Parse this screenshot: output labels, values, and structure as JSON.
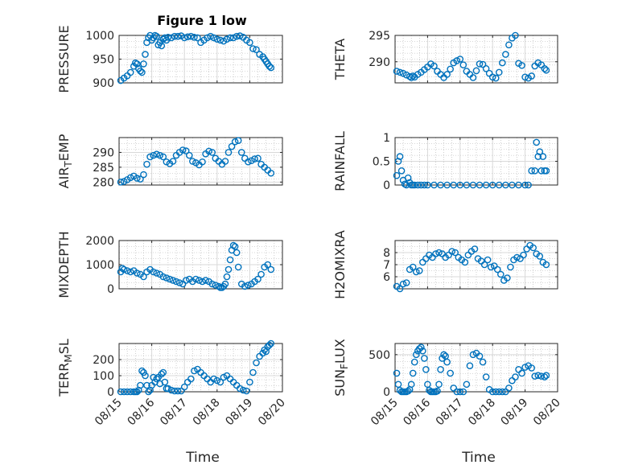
{
  "figure_title": "Figure 1 low",
  "xlabel": "Time",
  "x_tick_labels": [
    "08/15",
    "08/16",
    "08/17",
    "08/18",
    "08/19",
    "08/20"
  ],
  "colors": {
    "marker": "#0072bd",
    "axis": "#262626",
    "grid": "#d9d9d9",
    "minor_grid": "#b0b0b0"
  },
  "chart_data": [
    {
      "type": "scatter",
      "ylabel": "PRESSURE",
      "xlim": [
        0,
        5
      ],
      "ylim": [
        900,
        1000
      ],
      "yticks": [
        900,
        950,
        1000
      ],
      "x": [
        0.05,
        0.15,
        0.25,
        0.35,
        0.45,
        0.5,
        0.55,
        0.6,
        0.65,
        0.7,
        0.75,
        0.8,
        0.85,
        0.9,
        0.95,
        1.0,
        1.05,
        1.1,
        1.15,
        1.2,
        1.25,
        1.3,
        1.35,
        1.4,
        1.45,
        1.5,
        1.6,
        1.7,
        1.8,
        1.9,
        2.0,
        2.1,
        2.2,
        2.3,
        2.4,
        2.5,
        2.6,
        2.7,
        2.8,
        2.9,
        3.0,
        3.1,
        3.2,
        3.3,
        3.4,
        3.5,
        3.6,
        3.7,
        3.8,
        3.9,
        4.0,
        4.1,
        4.2,
        4.3,
        4.4,
        4.45,
        4.5,
        4.55,
        4.6,
        4.65
      ],
      "y": [
        905,
        910,
        915,
        922,
        935,
        942,
        940,
        930,
        925,
        922,
        940,
        960,
        985,
        995,
        1000,
        990,
        995,
        1000,
        998,
        980,
        985,
        978,
        992,
        995,
        990,
        996,
        995,
        998,
        998,
        999,
        995,
        997,
        998,
        996,
        995,
        985,
        990,
        995,
        998,
        995,
        992,
        990,
        988,
        992,
        995,
        995,
        998,
        999,
        996,
        990,
        985,
        972,
        970,
        960,
        955,
        950,
        945,
        940,
        935,
        932
      ]
    },
    {
      "type": "scatter",
      "ylabel": "THETA",
      "xlim": [
        0,
        5
      ],
      "ylim": [
        286,
        295
      ],
      "yticks": [
        290,
        295
      ],
      "x": [
        0.05,
        0.15,
        0.25,
        0.35,
        0.45,
        0.5,
        0.55,
        0.6,
        0.7,
        0.8,
        0.9,
        1.0,
        1.1,
        1.2,
        1.3,
        1.4,
        1.5,
        1.6,
        1.7,
        1.8,
        1.9,
        2.0,
        2.1,
        2.2,
        2.3,
        2.4,
        2.5,
        2.6,
        2.7,
        2.8,
        2.9,
        3.0,
        3.1,
        3.2,
        3.3,
        3.4,
        3.5,
        3.6,
        3.7,
        3.8,
        3.9,
        4.0,
        4.1,
        4.2,
        4.3,
        4.4,
        4.5,
        4.6,
        4.65
      ],
      "y": [
        288.2,
        288.0,
        287.8,
        287.5,
        287.2,
        287.0,
        287.3,
        287.1,
        287.6,
        288.0,
        288.5,
        289.0,
        289.6,
        289.2,
        288.2,
        287.6,
        287.0,
        287.6,
        288.6,
        289.8,
        290.2,
        290.5,
        289.4,
        288.2,
        287.6,
        287.0,
        288.3,
        289.6,
        289.5,
        288.7,
        287.8,
        287.1,
        286.9,
        288.0,
        289.8,
        291.4,
        293.2,
        294.5,
        295.0,
        289.7,
        289.3,
        287.1,
        286.9,
        287.3,
        289.2,
        289.8,
        289.4,
        288.7,
        288.4
      ]
    },
    {
      "type": "scatter",
      "ylabel": "AIR_TEMP",
      "xlim": [
        0,
        5
      ],
      "ylim": [
        279,
        295
      ],
      "yticks": [
        280,
        285,
        290
      ],
      "x": [
        0.05,
        0.15,
        0.25,
        0.35,
        0.45,
        0.55,
        0.65,
        0.75,
        0.85,
        0.95,
        1.05,
        1.15,
        1.25,
        1.35,
        1.45,
        1.55,
        1.65,
        1.75,
        1.85,
        1.95,
        2.05,
        2.15,
        2.25,
        2.35,
        2.45,
        2.55,
        2.65,
        2.75,
        2.85,
        2.95,
        3.05,
        3.15,
        3.25,
        3.35,
        3.45,
        3.55,
        3.65,
        3.75,
        3.85,
        3.95,
        4.05,
        4.15,
        4.25,
        4.35,
        4.45,
        4.55,
        4.65
      ],
      "y": [
        280.0,
        280.2,
        280.8,
        281.5,
        282.0,
        281.3,
        281.0,
        282.5,
        286.0,
        288.5,
        289.0,
        289.4,
        289.0,
        288.5,
        286.8,
        286.2,
        287.0,
        289.0,
        290.0,
        290.8,
        290.5,
        289.0,
        287.0,
        286.5,
        285.8,
        286.8,
        289.5,
        290.4,
        290.0,
        288.0,
        287.0,
        286.0,
        287.0,
        290.0,
        292.0,
        293.6,
        294.0,
        290.0,
        288.0,
        286.8,
        287.2,
        287.8,
        288.0,
        286.0,
        285.0,
        284.0,
        283.0
      ]
    },
    {
      "type": "scatter",
      "ylabel": "RAINFALL",
      "xlim": [
        0,
        5
      ],
      "ylim": [
        0,
        1
      ],
      "yticks": [
        0,
        0.5,
        1
      ],
      "x": [
        0.05,
        0.1,
        0.15,
        0.2,
        0.25,
        0.3,
        0.35,
        0.4,
        0.45,
        0.5,
        0.55,
        0.6,
        0.7,
        0.8,
        0.9,
        1.0,
        1.2,
        1.4,
        1.6,
        1.8,
        2.0,
        2.2,
        2.4,
        2.6,
        2.8,
        3.0,
        3.2,
        3.4,
        3.6,
        3.8,
        4.0,
        4.1,
        4.2,
        4.3,
        4.35,
        4.4,
        4.45,
        4.5,
        4.55,
        4.6,
        4.65
      ],
      "y": [
        0.2,
        0.5,
        0.6,
        0.3,
        0.1,
        0.02,
        0,
        0.15,
        0.05,
        0,
        0,
        0,
        0,
        0,
        0,
        0,
        0,
        0,
        0,
        0,
        0,
        0,
        0,
        0,
        0,
        0,
        0,
        0,
        0,
        0,
        0,
        0,
        0.3,
        0.3,
        0.9,
        0.6,
        0.7,
        0.3,
        0.6,
        0.3,
        0.3
      ]
    },
    {
      "type": "scatter",
      "ylabel": "MIXDEPTH",
      "xlim": [
        0,
        5
      ],
      "ylim": [
        0,
        2000
      ],
      "yticks": [
        0,
        1000,
        2000
      ],
      "x": [
        0.05,
        0.1,
        0.15,
        0.25,
        0.35,
        0.45,
        0.55,
        0.65,
        0.75,
        0.85,
        0.95,
        1.05,
        1.15,
        1.25,
        1.35,
        1.45,
        1.55,
        1.65,
        1.75,
        1.85,
        1.95,
        2.05,
        2.15,
        2.25,
        2.35,
        2.45,
        2.55,
        2.65,
        2.75,
        2.85,
        2.95,
        3.05,
        3.1,
        3.15,
        3.2,
        3.25,
        3.3,
        3.35,
        3.4,
        3.45,
        3.5,
        3.55,
        3.6,
        3.65,
        3.75,
        3.85,
        3.95,
        4.05,
        4.15,
        4.25,
        4.35,
        4.45,
        4.55,
        4.65
      ],
      "y": [
        700,
        850,
        800,
        750,
        700,
        750,
        650,
        600,
        500,
        700,
        800,
        700,
        650,
        600,
        500,
        450,
        400,
        350,
        300,
        250,
        200,
        350,
        400,
        300,
        400,
        350,
        300,
        350,
        300,
        200,
        150,
        100,
        50,
        50,
        100,
        200,
        500,
        800,
        1200,
        1600,
        1800,
        1750,
        1500,
        900,
        200,
        100,
        150,
        200,
        300,
        400,
        600,
        900,
        1000,
        800
      ]
    },
    {
      "type": "scatter",
      "ylabel": "H2OMIXRA",
      "xlim": [
        0,
        5
      ],
      "ylim": [
        5,
        9
      ],
      "yticks": [
        6,
        7,
        8
      ],
      "x": [
        0.05,
        0.15,
        0.25,
        0.35,
        0.45,
        0.55,
        0.65,
        0.75,
        0.85,
        0.95,
        1.05,
        1.15,
        1.25,
        1.35,
        1.45,
        1.55,
        1.65,
        1.75,
        1.85,
        1.95,
        2.05,
        2.15,
        2.25,
        2.35,
        2.45,
        2.55,
        2.65,
        2.75,
        2.85,
        2.95,
        3.05,
        3.15,
        3.25,
        3.35,
        3.45,
        3.55,
        3.65,
        3.75,
        3.85,
        3.95,
        4.05,
        4.15,
        4.25,
        4.35,
        4.45,
        4.55,
        4.65
      ],
      "y": [
        5.2,
        5.0,
        5.4,
        5.5,
        6.6,
        6.8,
        6.4,
        6.5,
        7.2,
        7.5,
        7.8,
        7.6,
        7.9,
        8.0,
        7.9,
        7.6,
        7.8,
        8.1,
        8.0,
        7.6,
        7.4,
        7.2,
        7.8,
        8.1,
        8.3,
        7.5,
        7.3,
        7.0,
        7.4,
        6.8,
        6.9,
        6.6,
        6.2,
        5.7,
        5.9,
        6.8,
        7.4,
        7.6,
        7.5,
        7.8,
        8.3,
        8.6,
        8.4,
        7.9,
        7.7,
        7.2,
        7.0
      ]
    },
    {
      "type": "scatter",
      "ylabel": "TERR_MSL",
      "xlim": [
        0,
        5
      ],
      "ylim": [
        0,
        300
      ],
      "yticks": [
        0,
        100,
        200
      ],
      "x": [
        0.05,
        0.15,
        0.25,
        0.35,
        0.45,
        0.5,
        0.55,
        0.6,
        0.65,
        0.7,
        0.75,
        0.8,
        0.85,
        0.9,
        0.95,
        1.0,
        1.05,
        1.1,
        1.15,
        1.2,
        1.25,
        1.3,
        1.35,
        1.4,
        1.45,
        1.5,
        1.6,
        1.7,
        1.8,
        1.9,
        2.0,
        2.1,
        2.2,
        2.3,
        2.4,
        2.5,
        2.6,
        2.7,
        2.8,
        2.9,
        3.0,
        3.1,
        3.2,
        3.3,
        3.4,
        3.5,
        3.6,
        3.7,
        3.8,
        3.9,
        4.0,
        4.1,
        4.2,
        4.3,
        4.4,
        4.45,
        4.5,
        4.55,
        4.6,
        4.65
      ],
      "y": [
        0,
        0,
        0,
        0,
        0,
        0,
        0,
        10,
        40,
        130,
        120,
        100,
        40,
        0,
        10,
        40,
        90,
        60,
        80,
        90,
        50,
        110,
        120,
        60,
        20,
        20,
        10,
        5,
        5,
        5,
        30,
        60,
        80,
        130,
        140,
        120,
        100,
        80,
        60,
        80,
        70,
        60,
        90,
        100,
        80,
        60,
        40,
        20,
        10,
        5,
        60,
        120,
        180,
        220,
        240,
        260,
        250,
        280,
        290,
        300
      ]
    },
    {
      "type": "scatter",
      "ylabel": "SUN_FLUX",
      "xlim": [
        0,
        5
      ],
      "ylim": [
        0,
        650
      ],
      "yticks": [
        0,
        500
      ],
      "x": [
        0.05,
        0.1,
        0.15,
        0.2,
        0.25,
        0.3,
        0.35,
        0.4,
        0.45,
        0.5,
        0.55,
        0.6,
        0.65,
        0.7,
        0.75,
        0.8,
        0.85,
        0.9,
        0.95,
        1.0,
        1.05,
        1.1,
        1.15,
        1.2,
        1.25,
        1.3,
        1.35,
        1.4,
        1.45,
        1.5,
        1.55,
        1.6,
        1.7,
        1.8,
        1.9,
        2.0,
        2.1,
        2.2,
        2.3,
        2.4,
        2.5,
        2.6,
        2.7,
        2.8,
        2.9,
        3.0,
        3.1,
        3.2,
        3.3,
        3.4,
        3.5,
        3.6,
        3.7,
        3.8,
        3.9,
        4.0,
        4.1,
        4.2,
        4.3,
        4.4,
        4.5,
        4.6,
        4.65
      ],
      "y": [
        250,
        100,
        20,
        0,
        0,
        0,
        0,
        10,
        30,
        100,
        250,
        400,
        500,
        550,
        580,
        600,
        550,
        450,
        300,
        100,
        20,
        0,
        0,
        0,
        0,
        10,
        100,
        300,
        450,
        500,
        480,
        400,
        250,
        50,
        0,
        0,
        0,
        100,
        350,
        500,
        520,
        480,
        400,
        200,
        30,
        0,
        0,
        0,
        0,
        0,
        50,
        150,
        200,
        300,
        250,
        330,
        350,
        320,
        210,
        220,
        210,
        200,
        220
      ]
    }
  ]
}
